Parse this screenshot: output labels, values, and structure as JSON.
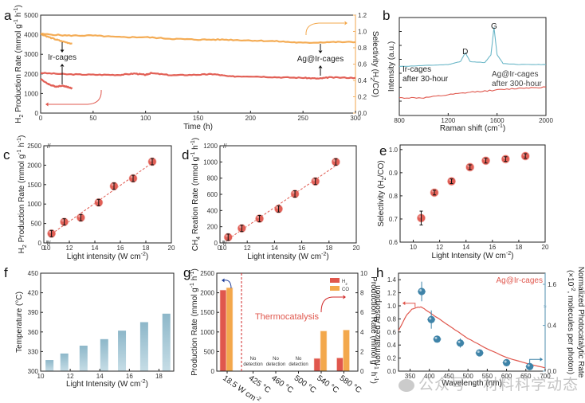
{
  "colors": {
    "red": "#e0574d",
    "orange": "#f3a84c",
    "teal": "#6bb7c8",
    "blue_marker": "#3e83a8",
    "bar_blue": "#8db7c9",
    "bar_blue_light": "#c6dde6",
    "dark_blue_arrow": "#1f3e9a",
    "axis_right_orange": "#f2b46a",
    "axis_right_blue": "#6a9fbb"
  },
  "watermark": "公众号 · 材料科学动态",
  "chart_data": [
    {
      "id": "a",
      "panel_letter": "a",
      "type": "line",
      "xlabel": "Time (h)",
      "ylabel": "H2 Production Rate (mmol g-1 h-1)",
      "ylabel_parts": [
        "H",
        "2",
        " Production Rate (mmol g",
        "-1",
        " h",
        "-1",
        ")"
      ],
      "y2label": "Selectivity (H2/CO)",
      "xlim": [
        0,
        300
      ],
      "ylim": [
        0,
        5000
      ],
      "y2lim": [
        0,
        1.2
      ],
      "xticks": [
        0,
        50,
        100,
        150,
        200,
        250,
        300
      ],
      "yticks": [
        0,
        1000,
        2000,
        3000,
        4000,
        5000
      ],
      "y2ticks": [
        0.0,
        0.2,
        0.4,
        0.6,
        0.8,
        1.0,
        1.2
      ],
      "annotations": [
        "Ir-cages",
        "Ag@Ir-cages"
      ],
      "series": [
        {
          "name": "Ag@Ir-cages H2 rate",
          "axis": "left",
          "color": "red",
          "x": [
            0,
            25,
            50,
            75,
            90,
            100,
            105,
            125,
            150,
            165,
            180,
            200,
            225,
            250,
            265,
            275,
            300
          ],
          "y": [
            2050,
            1980,
            1960,
            1950,
            2020,
            1950,
            2040,
            1930,
            1960,
            1990,
            1870,
            1880,
            1830,
            1800,
            1760,
            1820,
            1800
          ]
        },
        {
          "name": "Ir-cages H2 rate",
          "axis": "left",
          "color": "red",
          "x": [
            0,
            5,
            10,
            15,
            20,
            25,
            30
          ],
          "y": [
            1750,
            1550,
            1420,
            1350,
            1400,
            1350,
            1250
          ]
        },
        {
          "name": "Ag@Ir-cages selectivity",
          "axis": "right",
          "color": "orange",
          "x": [
            0,
            25,
            50,
            75,
            100,
            125,
            150,
            175,
            200,
            225,
            250,
            275,
            300
          ],
          "y": [
            0.97,
            0.95,
            0.95,
            0.93,
            0.93,
            0.91,
            0.9,
            0.9,
            0.89,
            0.88,
            0.86,
            0.87,
            0.87
          ]
        },
        {
          "name": "Ir-cages selectivity",
          "axis": "right",
          "color": "orange",
          "x": [
            0,
            10,
            20,
            30
          ],
          "y": [
            0.97,
            0.92,
            0.88,
            0.85
          ]
        }
      ]
    },
    {
      "id": "b",
      "panel_letter": "b",
      "type": "line",
      "xlabel": "Raman shift (cm-1)",
      "ylabel": "Intensity (a.u.)",
      "xlim": [
        800,
        2000
      ],
      "xticks": [
        800,
        1200,
        1600,
        2000
      ],
      "peak_labels": [
        {
          "label": "D",
          "x": 1340
        },
        {
          "label": "G",
          "x": 1575
        }
      ],
      "series": [
        {
          "name": "Ir-cages after 30-hour",
          "label_lines": [
            "Ir-cages",
            "after 30-hour"
          ],
          "color": "teal",
          "x": [
            800,
            1000,
            1200,
            1300,
            1340,
            1380,
            1500,
            1550,
            1575,
            1600,
            1650,
            1800,
            2000
          ],
          "y": [
            0.5,
            0.51,
            0.52,
            0.55,
            0.64,
            0.55,
            0.54,
            0.62,
            0.9,
            0.62,
            0.53,
            0.52,
            0.52
          ]
        },
        {
          "name": "Ag@Ir-cages after 300-hour",
          "label_lines": [
            "Ag@Ir-cages",
            "after 300-hour"
          ],
          "color": "red",
          "x": [
            800,
            1000,
            1200,
            1400,
            1600,
            1800,
            2000
          ],
          "y": [
            0.18,
            0.18,
            0.21,
            0.24,
            0.26,
            0.28,
            0.29
          ]
        }
      ]
    },
    {
      "id": "c",
      "panel_letter": "c",
      "type": "scatter",
      "xlabel": "Light intensity (W cm-2)",
      "ylabel": "H2 Production Rate (mmol g-1 h-1)",
      "xlim": [
        10,
        20
      ],
      "ylim": [
        0,
        2500
      ],
      "xticks": [
        10,
        12,
        14,
        16,
        18,
        20
      ],
      "xtick_extra": "0",
      "yticks": [
        0,
        500,
        1000,
        1500,
        2000,
        2500
      ],
      "x": [
        10.6,
        11.6,
        12.9,
        14.3,
        15.5,
        17.0,
        18.5
      ],
      "y": [
        240,
        540,
        650,
        1040,
        1460,
        1660,
        2090
      ],
      "fit_line": true
    },
    {
      "id": "d",
      "panel_letter": "d",
      "type": "scatter",
      "xlabel": "Light intensity (W cm-2)",
      "ylabel": "CH4 Reation Rate (mmol g-1 h-1)",
      "xlim": [
        10,
        20
      ],
      "ylim": [
        0,
        1200
      ],
      "xticks": [
        10,
        12,
        14,
        16,
        18,
        20
      ],
      "xtick_extra": "0",
      "yticks": [
        0,
        200,
        400,
        600,
        800,
        1000,
        1200
      ],
      "x": [
        10.6,
        11.6,
        12.9,
        14.3,
        15.5,
        17.0,
        18.5
      ],
      "y": [
        70,
        180,
        300,
        420,
        605,
        760,
        1000
      ],
      "fit_line": true
    },
    {
      "id": "e",
      "panel_letter": "e",
      "type": "scatter",
      "xlabel": "Light Intensity (W cm-2)",
      "ylabel": "Selectivity (H2/CO)",
      "xlim": [
        9,
        20
      ],
      "ylim": [
        0.6,
        1.02
      ],
      "xticks": [
        10,
        12,
        14,
        16,
        18,
        20
      ],
      "yticks": [
        0.6,
        0.7,
        0.8,
        0.9,
        1.0
      ],
      "x": [
        10.6,
        11.6,
        12.9,
        14.3,
        15.5,
        17.0,
        18.5
      ],
      "y": [
        0.704,
        0.814,
        0.863,
        0.924,
        0.952,
        0.959,
        0.972
      ],
      "err": [
        0.03,
        0.01,
        0.01,
        0.01,
        0.01,
        0.01,
        0.01
      ]
    },
    {
      "id": "f",
      "panel_letter": "f",
      "type": "bar",
      "xlabel": "Light Intensity (W cm-2)",
      "ylabel": "Temperature (°C)",
      "xlim": [
        10,
        19
      ],
      "ylim": [
        300,
        450
      ],
      "xticks": [
        10,
        12,
        14,
        16,
        18
      ],
      "yticks": [
        300,
        330,
        360,
        390,
        420,
        450
      ],
      "x": [
        10.6,
        11.6,
        12.9,
        14.3,
        15.5,
        17.0,
        18.5
      ],
      "values": [
        317,
        327,
        339,
        349,
        362,
        375,
        388
      ]
    },
    {
      "id": "g",
      "panel_letter": "g",
      "type": "bar",
      "ylabel": "Production Rate (mmol g-1 h-1)",
      "y2label": "Production Rate (mmol g-1 h-1)",
      "ylim": [
        0,
        2500
      ],
      "y2lim": [
        0,
        10
      ],
      "yticks": [
        0,
        500,
        1000,
        1500,
        2000,
        2500
      ],
      "y2ticks": [
        0,
        2,
        4,
        6,
        8,
        10
      ],
      "categories": [
        "18.5 W cm-2",
        "425 °C",
        "460 °C",
        "500 °C",
        "540 °C",
        "580 °C"
      ],
      "legend": [
        "H2",
        "CO"
      ],
      "legend_placement": "top-right",
      "annotation": "Thermocatalysis",
      "no_detection_label": [
        "No",
        "detection"
      ],
      "series": [
        {
          "name": "H2",
          "color": "red",
          "axis": [
            "left",
            null,
            null,
            null,
            "right",
            "right"
          ],
          "values": [
            2070,
            null,
            null,
            null,
            1.3,
            1.35
          ]
        },
        {
          "name": "CO",
          "color": "orange",
          "axis": [
            "left",
            null,
            null,
            null,
            "right",
            "right"
          ],
          "values": [
            2130,
            null,
            null,
            null,
            4.1,
            4.2
          ]
        }
      ]
    },
    {
      "id": "h",
      "panel_letter": "h",
      "type": "line",
      "xlabel": "Wavelength (nm)",
      "ylabel": "Normalized Absorption",
      "y2label": "Normalized Photocatalytic Rate",
      "y2label_sub": "(×10-2, molecules per photon)",
      "xlim": [
        320,
        700
      ],
      "ylim": [
        0,
        1.5
      ],
      "y2lim": [
        0,
        1.8
      ],
      "xticks": [
        350,
        400,
        450,
        500,
        550,
        600,
        650,
        700
      ],
      "yticks": [
        0.0,
        0.2,
        0.4,
        0.6,
        0.8,
        1.0,
        1.2,
        1.4
      ],
      "y2ticks": [
        0.0,
        0.4,
        1.6
      ],
      "y2tick_labels": [
        "0.0",
        "0.4",
        "1.6"
      ],
      "legend": "Ag@Ir-cages",
      "absorption": {
        "x": [
          320,
          340,
          355,
          370,
          380,
          400,
          450,
          500,
          550,
          600,
          650,
          700
        ],
        "y": [
          0.62,
          0.85,
          0.95,
          0.98,
          0.98,
          0.9,
          0.7,
          0.5,
          0.34,
          0.21,
          0.12,
          0.05
        ]
      },
      "rate_points": {
        "x": [
          380,
          405,
          420,
          480,
          530,
          600,
          660
        ],
        "y": [
          1.22,
          0.79,
          0.49,
          0.43,
          0.28,
          0.13,
          0.07
        ],
        "err": [
          0.15,
          0.14,
          0.03,
          0.07,
          0.03,
          0.03,
          0.03
        ]
      }
    }
  ]
}
